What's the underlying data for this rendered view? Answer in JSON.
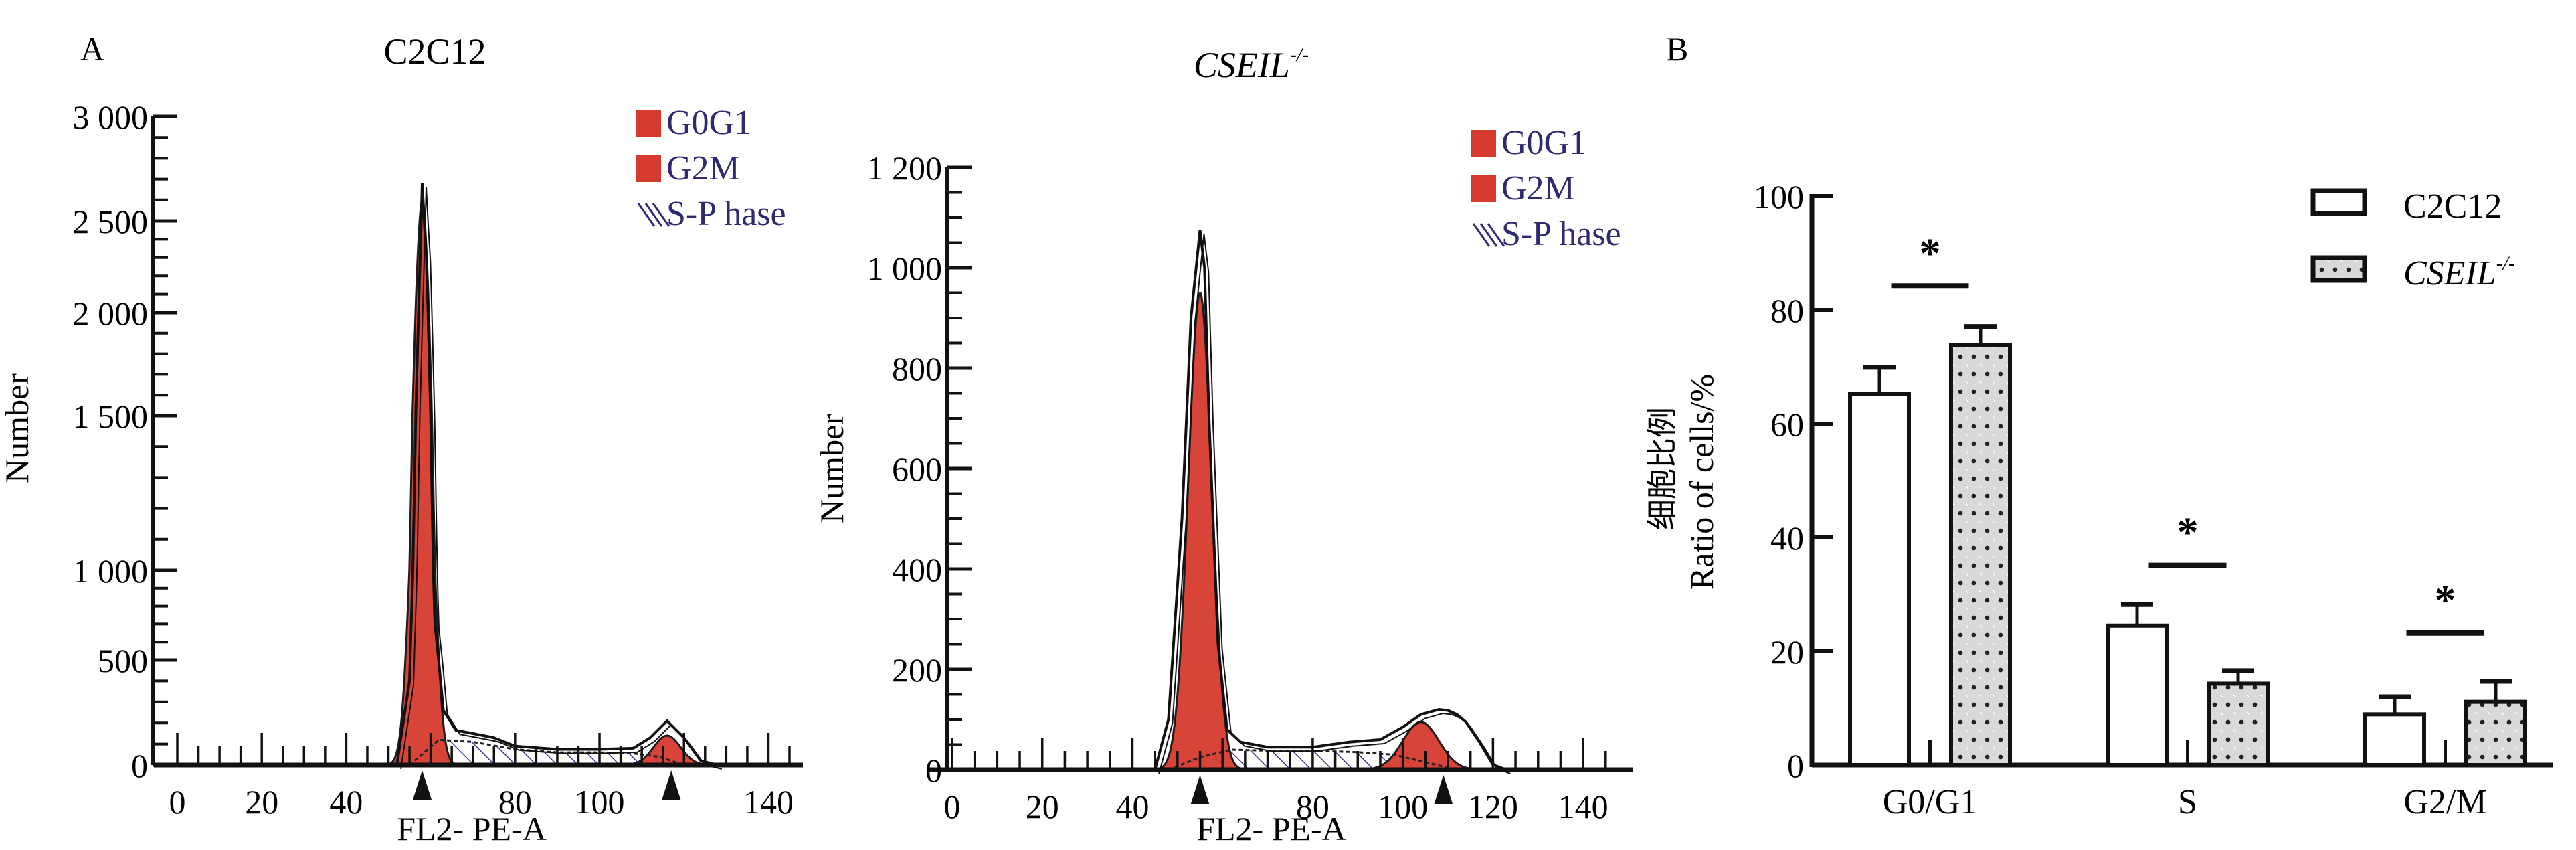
{
  "figure": {
    "panel_a_label": "A",
    "panel_b_label": "B"
  },
  "chart_data": [
    {
      "type": "area",
      "title": "C2C12",
      "xlabel": "FL2- PE-A",
      "ylabel": "Number",
      "xlim": [
        0,
        145
      ],
      "x_ticks": [
        "0",
        "20",
        "40",
        "80",
        "100",
        "140"
      ],
      "x_tick_values": [
        0,
        20,
        40,
        80,
        100,
        140
      ],
      "y_ticks": [
        "0",
        "500",
        "1 000",
        "1 500",
        "2 000",
        "2 500",
        "3 000"
      ],
      "y_tick_values": [
        0,
        500,
        1000,
        1500,
        2000,
        2500,
        3000
      ],
      "ylim": [
        0,
        3000
      ],
      "markers_x": [
        58,
        117
      ],
      "legend": {
        "position": "top-right",
        "items": [
          {
            "label": "G0G1",
            "style": "solid",
            "color": "#d63a2e"
          },
          {
            "label": "G2M",
            "style": "solid",
            "color": "#d63a2e"
          },
          {
            "label": "S-P hase",
            "style": "hatched",
            "color": "#2e2a7a"
          }
        ]
      },
      "series": [
        {
          "name": "G0G1",
          "peak_x": 58,
          "peak_y": 2600,
          "sigma": 2.2,
          "color": "#d63a2e"
        },
        {
          "name": "G2M",
          "peak_x": 116,
          "peak_y": 140,
          "sigma": 3.2,
          "color": "#d63a2e"
        },
        {
          "name": "S-Phase",
          "x": [
            55,
            62,
            70,
            80,
            90,
            100,
            108,
            114,
            120
          ],
          "y": [
            0,
            120,
            110,
            75,
            60,
            60,
            55,
            40,
            0
          ]
        },
        {
          "name": "Total",
          "x": [
            52,
            55,
            57,
            58,
            59,
            61,
            63,
            66,
            70,
            75,
            80,
            90,
            100,
            108,
            112,
            116,
            120,
            124,
            128
          ],
          "y": [
            0,
            400,
            1900,
            2680,
            2300,
            700,
            260,
            165,
            150,
            130,
            90,
            75,
            75,
            80,
            130,
            210,
            130,
            20,
            0
          ]
        }
      ]
    },
    {
      "type": "area",
      "title": "CSEIL",
      "title_superscript": "-/-",
      "xlabel": "FL2- PE-A",
      "ylabel": "Number",
      "xlim": [
        0,
        148
      ],
      "x_ticks": [
        "0",
        "20",
        "40",
        "80",
        "100",
        "120",
        "140"
      ],
      "x_tick_values": [
        0,
        20,
        40,
        80,
        100,
        120,
        140
      ],
      "y_ticks": [
        "0",
        "200",
        "400",
        "600",
        "800",
        "1 000",
        "1 200"
      ],
      "y_tick_values": [
        0,
        200,
        400,
        600,
        800,
        1000,
        1200
      ],
      "ylim": [
        0,
        1200
      ],
      "markers_x": [
        55,
        109
      ],
      "legend": {
        "position": "top-right",
        "items": [
          {
            "label": "G0G1",
            "style": "solid",
            "color": "#d63a2e"
          },
          {
            "label": "G2M",
            "style": "solid",
            "color": "#d63a2e"
          },
          {
            "label": "S-P hase",
            "style": "hatched",
            "color": "#2e2a7a"
          }
        ]
      },
      "series": [
        {
          "name": "G0G1",
          "peak_x": 55,
          "peak_y": 950,
          "sigma": 2.6,
          "color": "#d63a2e"
        },
        {
          "name": "G2M",
          "peak_x": 104,
          "peak_y": 95,
          "sigma": 4.0,
          "color": "#d63a2e"
        },
        {
          "name": "S-Phase",
          "x": [
            48,
            55,
            62,
            70,
            80,
            90,
            98,
            105,
            112
          ],
          "y": [
            0,
            25,
            40,
            38,
            38,
            35,
            30,
            15,
            0
          ]
        },
        {
          "name": "Total",
          "x": [
            45,
            48,
            51,
            53,
            55,
            56,
            57,
            59,
            61,
            64,
            70,
            80,
            88,
            95,
            100,
            104,
            108,
            110,
            112,
            114,
            117,
            120,
            123
          ],
          "y": [
            0,
            100,
            500,
            900,
            1075,
            1000,
            700,
            250,
            80,
            55,
            45,
            45,
            55,
            60,
            85,
            110,
            120,
            118,
            110,
            95,
            55,
            10,
            0
          ]
        }
      ]
    },
    {
      "type": "bar",
      "title": "",
      "xlabel": "",
      "ylabel_cn": "细胞比例",
      "ylabel": "Ratio of cells/%",
      "ylim": [
        0,
        100
      ],
      "y_ticks": [
        "0",
        "20",
        "40",
        "60",
        "80",
        "100"
      ],
      "y_tick_values": [
        0,
        20,
        40,
        60,
        80,
        100
      ],
      "categories": [
        "G0/G1",
        "S",
        "G2/M"
      ],
      "legend": {
        "position": "top-right",
        "items": [
          {
            "label": "C2C12",
            "style": "open",
            "superscript": ""
          },
          {
            "label": "CSEIL",
            "style": "dotted-gray",
            "superscript": "-/-"
          }
        ]
      },
      "series": [
        {
          "name": "C2C12",
          "values": [
            65.2,
            24.5,
            8.9
          ],
          "error": [
            4.7,
            3.7,
            3.1
          ],
          "fill": "#ffffff"
        },
        {
          "name": "CSEIL-/-",
          "values": [
            73.8,
            14.3,
            11.1
          ],
          "error": [
            3.3,
            2.3,
            3.6
          ],
          "fill": "#d7d7d7"
        }
      ],
      "significance": [
        {
          "category": "G0/G1",
          "label": "*",
          "y": 84.2
        },
        {
          "category": "S",
          "label": "*",
          "y": 35.1
        },
        {
          "category": "G2/M",
          "label": "*",
          "y": 23.2
        }
      ]
    }
  ]
}
